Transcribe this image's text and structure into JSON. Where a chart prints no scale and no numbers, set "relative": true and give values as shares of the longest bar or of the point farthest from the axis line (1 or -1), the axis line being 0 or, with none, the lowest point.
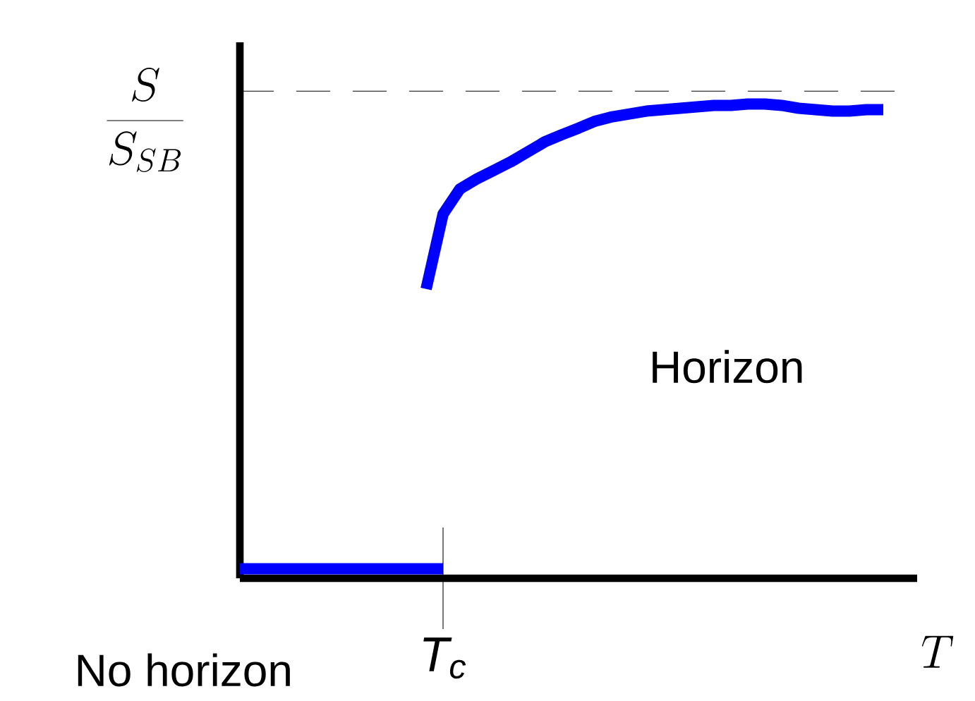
{
  "chart_data": {
    "type": "line",
    "relative": true,
    "xlabel": "T",
    "ylabel": "\\frac{S}{S_{SB}}",
    "categories": [
      null,
      null,
      null,
      null,
      null,
      null,
      null,
      null,
      null,
      null,
      null,
      null,
      null,
      null,
      null,
      null,
      null,
      null,
      null,
      null,
      null,
      null,
      null,
      null,
      null,
      null,
      null,
      null,
      null,
      null,
      null,
      null,
      null,
      null,
      null,
      null,
      null,
      null,
      null,
      null,
      null
    ],
    "series": [
      {
        "color": "#0000ff",
        "values": [
          0.02,
          0.02,
          0.02,
          0.02,
          0.02,
          0.02,
          0.02,
          0.02,
          0.02,
          0.02,
          0.02,
          0.02,
          0.02,
          null,
          null,
          null,
          null,
          null,
          null,
          null,
          null,
          null,
          null,
          null,
          null,
          null,
          null,
          null,
          null,
          null,
          null,
          null,
          null,
          null,
          null,
          null,
          null,
          null,
          null,
          null,
          null
        ]
      },
      {
        "color": "#0000ff",
        "values": [
          null,
          null,
          null,
          null,
          null,
          null,
          null,
          null,
          null,
          null,
          null,
          0.61,
          0.768,
          0.821,
          0.842,
          0.86,
          0.878,
          0.899,
          0.92,
          0.935,
          0.949,
          0.964,
          0.973,
          0.979,
          0.985,
          0.988,
          0.991,
          0.994,
          0.997,
          0.997,
          1.0,
          1.0,
          0.997,
          0.991,
          0.988,
          0.985,
          0.985,
          0.988,
          0.988,
          null,
          null
        ]
      }
    ],
    "ref_lines": [
      {
        "axis": "y",
        "value": 1.027,
        "line_style": "dashed"
      }
    ],
    "annotations": [
      "Horizon",
      "No horizon",
      "T$_{c}$"
    ]
  }
}
